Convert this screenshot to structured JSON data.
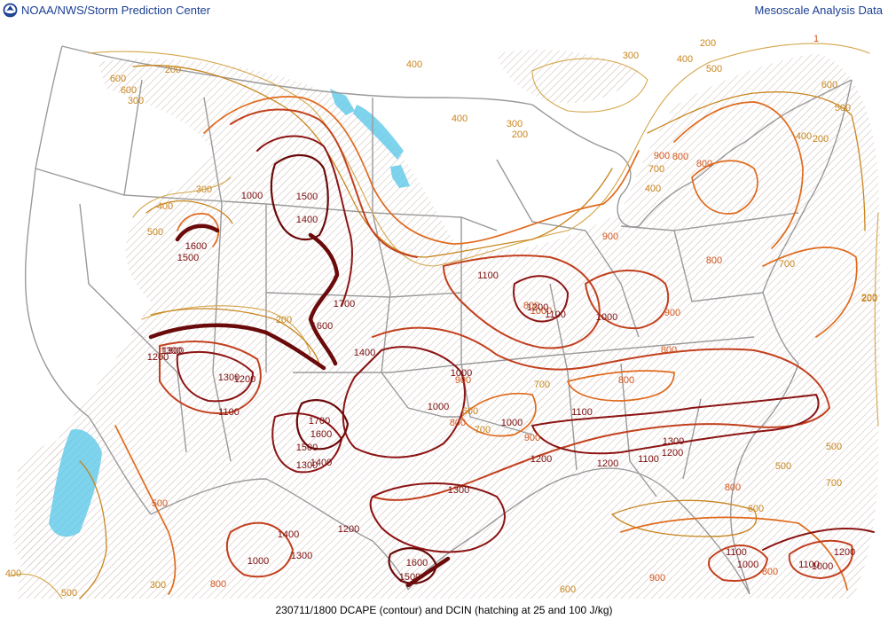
{
  "header": {
    "organization": "NOAA/NWS/Storm Prediction Center",
    "product": "Mesoscale Analysis Data",
    "logo_icon": "noaa-logo-icon"
  },
  "caption": "230711/1800 DCAPE (contour) and DCIN (hatching at 25 and 100 J/kg)",
  "colors": {
    "boundary": "#9a9a9a",
    "hatch": "#c8b8b0",
    "dcin_high": "#5ec8e8",
    "contour_200": "#d4a64a",
    "contour_500": "#c8861e",
    "contour_800": "#e06a1c",
    "contour_1000": "#c2401e",
    "contour_1200": "#8c1414",
    "contour_1500": "#6a0a0a",
    "label_low": "#c8861e",
    "label_mid": "#d2561c",
    "label_high": "#7a0c0c"
  },
  "labels": [
    {
      "text": "200",
      "tier": "low"
    },
    {
      "text": "600",
      "tier": "low"
    },
    {
      "text": "600",
      "tier": "low"
    },
    {
      "text": "300",
      "tier": "low"
    },
    {
      "text": "400",
      "tier": "low"
    },
    {
      "text": "400",
      "tier": "low"
    },
    {
      "text": "300",
      "tier": "low"
    },
    {
      "text": "200",
      "tier": "low"
    },
    {
      "text": "300",
      "tier": "low"
    },
    {
      "text": "200",
      "tier": "low"
    },
    {
      "text": "400",
      "tier": "low"
    },
    {
      "text": "500",
      "tier": "low"
    },
    {
      "text": "600",
      "tier": "low"
    },
    {
      "text": "500",
      "tier": "low"
    },
    {
      "text": "200",
      "tier": "low"
    },
    {
      "text": "400",
      "tier": "low"
    },
    {
      "text": "900",
      "tier": "mid"
    },
    {
      "text": "800",
      "tier": "mid"
    },
    {
      "text": "700",
      "tier": "low"
    },
    {
      "text": "400",
      "tier": "low"
    },
    {
      "text": "900",
      "tier": "mid"
    },
    {
      "text": "800",
      "tier": "mid"
    },
    {
      "text": "800",
      "tier": "mid"
    },
    {
      "text": "700",
      "tier": "low"
    },
    {
      "text": "300",
      "tier": "low"
    },
    {
      "text": "1000",
      "tier": "high"
    },
    {
      "text": "1500",
      "tier": "high"
    },
    {
      "text": "1400",
      "tier": "high"
    },
    {
      "text": "1600",
      "tier": "high"
    },
    {
      "text": "1500",
      "tier": "high"
    },
    {
      "text": "200",
      "tier": "low"
    },
    {
      "text": "400",
      "tier": "low"
    },
    {
      "text": "500",
      "tier": "low"
    },
    {
      "text": "900",
      "tier": "mid"
    },
    {
      "text": "1100",
      "tier": "high"
    },
    {
      "text": "800",
      "tier": "mid"
    },
    {
      "text": "1000",
      "tier": "mid"
    },
    {
      "text": "1200",
      "tier": "high"
    },
    {
      "text": "1100",
      "tier": "high"
    },
    {
      "text": "1000",
      "tier": "high"
    },
    {
      "text": "900",
      "tier": "mid"
    },
    {
      "text": "200",
      "tier": "low"
    },
    {
      "text": "1700",
      "tier": "high"
    },
    {
      "text": "1600",
      "tier": "high"
    },
    {
      "text": "1400",
      "tier": "high"
    },
    {
      "text": "1300",
      "tier": "high"
    },
    {
      "text": "1300",
      "tier": "high"
    },
    {
      "text": "1200",
      "tier": "high"
    },
    {
      "text": "1300",
      "tier": "high"
    },
    {
      "text": "1200",
      "tier": "high"
    },
    {
      "text": "1100",
      "tier": "high"
    },
    {
      "text": "1000",
      "tier": "high"
    },
    {
      "text": "800",
      "tier": "mid"
    },
    {
      "text": "1000",
      "tier": "high"
    },
    {
      "text": "700",
      "tier": "low"
    },
    {
      "text": "800",
      "tier": "mid"
    },
    {
      "text": "600",
      "tier": "low"
    },
    {
      "text": "700",
      "tier": "low"
    },
    {
      "text": "800",
      "tier": "mid"
    },
    {
      "text": "1000",
      "tier": "high"
    },
    {
      "text": "1700",
      "tier": "high"
    },
    {
      "text": "1600",
      "tier": "high"
    },
    {
      "text": "1500",
      "tier": "high"
    },
    {
      "text": "1400",
      "tier": "high"
    },
    {
      "text": "1300",
      "tier": "high"
    },
    {
      "text": "1100",
      "tier": "high"
    },
    {
      "text": "900",
      "tier": "mid"
    },
    {
      "text": "1200",
      "tier": "high"
    },
    {
      "text": "1200",
      "tier": "high"
    },
    {
      "text": "1300",
      "tier": "high"
    },
    {
      "text": "1200",
      "tier": "high"
    },
    {
      "text": "1100",
      "tier": "high"
    },
    {
      "text": "500",
      "tier": "low"
    },
    {
      "text": "500",
      "tier": "low"
    },
    {
      "text": "700",
      "tier": "low"
    },
    {
      "text": "800",
      "tier": "mid"
    },
    {
      "text": "600",
      "tier": "low"
    },
    {
      "text": "500",
      "tier": "mid"
    },
    {
      "text": "1300",
      "tier": "high"
    },
    {
      "text": "1400",
      "tier": "high"
    },
    {
      "text": "1200",
      "tier": "high"
    },
    {
      "text": "1300",
      "tier": "high"
    },
    {
      "text": "1000",
      "tier": "high"
    },
    {
      "text": "1600",
      "tier": "high"
    },
    {
      "text": "1500",
      "tier": "high"
    },
    {
      "text": "500",
      "tier": "low"
    },
    {
      "text": "400",
      "tier": "low"
    },
    {
      "text": "300",
      "tier": "low"
    },
    {
      "text": "800",
      "tier": "mid"
    },
    {
      "text": "600",
      "tier": "low"
    },
    {
      "text": "900",
      "tier": "mid"
    },
    {
      "text": "1100",
      "tier": "high"
    },
    {
      "text": "1000",
      "tier": "high"
    },
    {
      "text": "800",
      "tier": "mid"
    },
    {
      "text": "1100",
      "tier": "high"
    },
    {
      "text": "1000",
      "tier": "high"
    },
    {
      "text": "1200",
      "tier": "high"
    },
    {
      "text": "200",
      "tier": "low"
    },
    {
      "text": "1",
      "tier": "mid"
    }
  ]
}
